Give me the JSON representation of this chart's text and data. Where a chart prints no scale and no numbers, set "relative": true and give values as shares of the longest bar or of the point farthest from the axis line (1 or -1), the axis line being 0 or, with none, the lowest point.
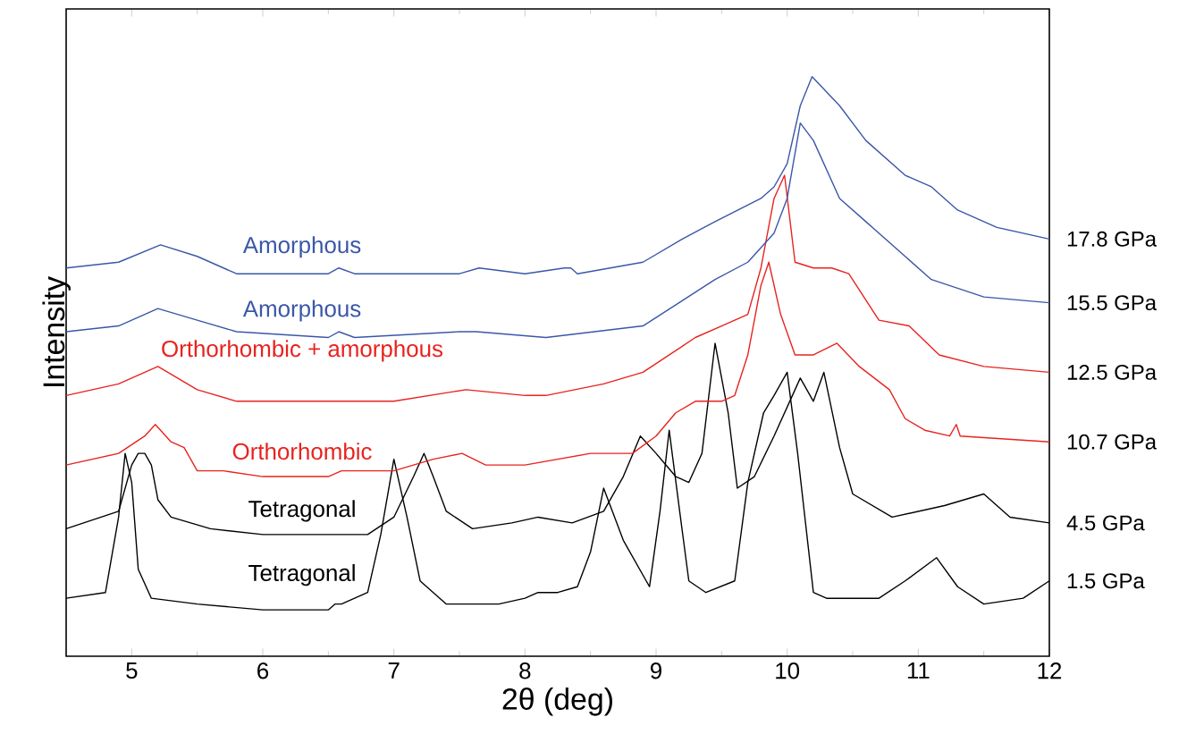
{
  "chart_data": {
    "type": "line",
    "relative": true,
    "xlabel": "2θ (deg)",
    "ylabel": "Intensity",
    "xlim": [
      4.5,
      12
    ],
    "xticks": [
      5,
      6,
      7,
      8,
      9,
      10,
      11,
      12
    ],
    "marker": "none",
    "line_style": "solid",
    "series": [
      {
        "name": "1.5 GPa",
        "color": "#000000",
        "x": [
          4.5,
          4.8,
          4.9,
          4.95,
          5.0,
          5.05,
          5.15,
          5.5,
          6.0,
          6.5,
          6.55,
          6.6,
          6.8,
          6.9,
          7.0,
          7.1,
          7.2,
          7.4,
          7.8,
          8.0,
          8.1,
          8.25,
          8.4,
          8.5,
          8.6,
          8.75,
          8.95,
          9.03,
          9.1,
          9.18,
          9.25,
          9.38,
          9.6,
          9.7,
          9.82,
          9.9,
          10.0,
          10.08,
          10.2,
          10.3,
          10.7,
          10.9,
          11.14,
          11.3,
          11.5,
          11.8,
          12.0
        ],
        "values": [
          0.1,
          0.11,
          0.24,
          0.35,
          0.3,
          0.15,
          0.1,
          0.09,
          0.08,
          0.08,
          0.09,
          0.09,
          0.11,
          0.21,
          0.34,
          0.24,
          0.13,
          0.09,
          0.09,
          0.1,
          0.11,
          0.11,
          0.12,
          0.18,
          0.29,
          0.2,
          0.12,
          0.25,
          0.39,
          0.25,
          0.13,
          0.11,
          0.13,
          0.3,
          0.42,
          0.45,
          0.49,
          0.35,
          0.11,
          0.1,
          0.1,
          0.13,
          0.17,
          0.12,
          0.09,
          0.1,
          0.13
        ]
      },
      {
        "name": "4.5 GPa",
        "color": "#000000",
        "x": [
          4.5,
          4.9,
          5.0,
          5.05,
          5.1,
          5.15,
          5.2,
          5.3,
          5.6,
          6.0,
          6.5,
          6.6,
          6.8,
          7.0,
          7.15,
          7.23,
          7.3,
          7.4,
          7.6,
          7.9,
          8.1,
          8.36,
          8.6,
          8.75,
          8.88,
          9.0,
          9.15,
          9.25,
          9.35,
          9.45,
          9.55,
          9.62,
          9.75,
          9.9,
          10.1,
          10.2,
          10.28,
          10.4,
          10.5,
          10.8,
          11.2,
          11.5,
          11.7,
          12.0
        ],
        "values": [
          0.22,
          0.25,
          0.33,
          0.35,
          0.35,
          0.33,
          0.27,
          0.24,
          0.22,
          0.21,
          0.21,
          0.21,
          0.21,
          0.24,
          0.31,
          0.35,
          0.31,
          0.25,
          0.22,
          0.23,
          0.24,
          0.23,
          0.25,
          0.31,
          0.38,
          0.35,
          0.31,
          0.3,
          0.35,
          0.54,
          0.42,
          0.29,
          0.31,
          0.38,
          0.48,
          0.44,
          0.49,
          0.36,
          0.28,
          0.24,
          0.26,
          0.28,
          0.24,
          0.23
        ]
      },
      {
        "name": "10.7 GPa",
        "color": "#e8231f",
        "x": [
          4.5,
          4.9,
          5.1,
          5.18,
          5.3,
          5.4,
          5.5,
          5.7,
          6.0,
          6.5,
          6.6,
          7.0,
          7.3,
          7.52,
          7.7,
          8.0,
          8.5,
          8.82,
          9.0,
          9.15,
          9.3,
          9.5,
          9.6,
          9.7,
          9.8,
          9.86,
          9.95,
          10.06,
          10.2,
          10.38,
          10.55,
          10.78,
          10.9,
          11.05,
          11.24,
          11.29,
          11.32,
          12.0
        ],
        "values": [
          0.33,
          0.35,
          0.38,
          0.4,
          0.37,
          0.36,
          0.32,
          0.32,
          0.31,
          0.31,
          0.32,
          0.32,
          0.34,
          0.35,
          0.33,
          0.33,
          0.35,
          0.35,
          0.38,
          0.42,
          0.44,
          0.44,
          0.45,
          0.52,
          0.64,
          0.68,
          0.59,
          0.52,
          0.52,
          0.54,
          0.5,
          0.46,
          0.41,
          0.39,
          0.38,
          0.4,
          0.38,
          0.37
        ]
      },
      {
        "name": "12.5 GPa",
        "color": "#e8231f",
        "x": [
          4.5,
          4.9,
          5.2,
          5.35,
          5.5,
          5.8,
          6.5,
          7.0,
          7.55,
          8.0,
          8.16,
          8.6,
          8.9,
          9.3,
          9.5,
          9.7,
          9.8,
          9.9,
          9.98,
          10.06,
          10.2,
          10.34,
          10.47,
          10.7,
          10.93,
          11.16,
          11.5,
          12.0
        ],
        "values": [
          0.45,
          0.47,
          0.5,
          0.48,
          0.46,
          0.44,
          0.44,
          0.44,
          0.46,
          0.45,
          0.45,
          0.47,
          0.49,
          0.55,
          0.57,
          0.59,
          0.67,
          0.79,
          0.83,
          0.68,
          0.67,
          0.67,
          0.66,
          0.58,
          0.57,
          0.52,
          0.5,
          0.49
        ]
      },
      {
        "name": "15.5 GPa",
        "color": "#3a57a8",
        "x": [
          4.5,
          4.9,
          5.2,
          5.5,
          5.8,
          6.5,
          6.58,
          6.7,
          7.5,
          7.63,
          8.16,
          8.9,
          9.45,
          9.7,
          9.9,
          10.0,
          10.1,
          10.2,
          10.4,
          10.6,
          10.9,
          11.1,
          11.5,
          12.0
        ],
        "values": [
          0.56,
          0.57,
          0.6,
          0.58,
          0.56,
          0.55,
          0.56,
          0.55,
          0.56,
          0.56,
          0.55,
          0.57,
          0.65,
          0.68,
          0.73,
          0.79,
          0.92,
          0.89,
          0.79,
          0.75,
          0.69,
          0.65,
          0.62,
          0.61
        ]
      },
      {
        "name": "17.8 GPa",
        "color": "#3a57a8",
        "x": [
          4.5,
          4.9,
          5.22,
          5.5,
          5.8,
          6.5,
          6.58,
          6.7,
          7.5,
          7.65,
          8.0,
          8.3,
          8.35,
          8.4,
          8.9,
          9.2,
          9.45,
          9.8,
          9.9,
          10.0,
          10.1,
          10.19,
          10.4,
          10.6,
          10.9,
          11.1,
          11.3,
          11.6,
          12.0
        ],
        "values": [
          0.67,
          0.68,
          0.71,
          0.69,
          0.66,
          0.66,
          0.67,
          0.66,
          0.66,
          0.67,
          0.66,
          0.67,
          0.67,
          0.66,
          0.68,
          0.72,
          0.75,
          0.79,
          0.81,
          0.85,
          0.95,
          1.0,
          0.95,
          0.89,
          0.83,
          0.81,
          0.77,
          0.74,
          0.72
        ]
      }
    ],
    "annotations": [
      "Amorphous",
      "Amorphous",
      "Orthorhombic + amorphous",
      "Orthorhombic",
      "Tetragonal",
      "Tetragonal"
    ]
  }
}
